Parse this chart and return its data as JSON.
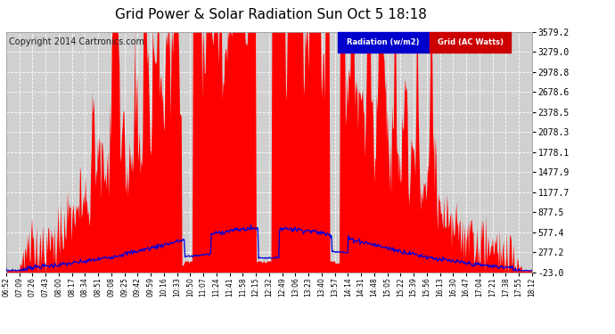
{
  "title": "Grid Power & Solar Radiation Sun Oct 5 18:18",
  "copyright": "Copyright 2014 Cartronics.com",
  "legend_radiation": "Radiation (w/m2)",
  "legend_grid": "Grid (AC Watts)",
  "ylabel_ticks": [
    3579.2,
    3279.0,
    2978.8,
    2678.6,
    2378.5,
    2078.3,
    1778.1,
    1477.9,
    1177.7,
    877.5,
    577.4,
    277.2,
    -23.0
  ],
  "ymin": -23.0,
  "ymax": 3579.2,
  "bg_color": "#ffffff",
  "plot_bg_color": "#d0d0d0",
  "grid_color": "#ffffff",
  "radiation_color": "#0000dd",
  "grid_power_color": "#ff0000",
  "title_color": "#000000",
  "title_fontsize": 11,
  "copyright_fontsize": 7,
  "x_tick_labels": [
    "06:52",
    "07:09",
    "07:26",
    "07:43",
    "08:00",
    "08:17",
    "08:34",
    "08:51",
    "09:08",
    "09:25",
    "09:42",
    "09:59",
    "10:16",
    "10:33",
    "10:50",
    "11:07",
    "11:24",
    "11:41",
    "11:58",
    "12:15",
    "12:32",
    "12:49",
    "13:06",
    "13:23",
    "13:40",
    "13:57",
    "14:14",
    "14:31",
    "14:48",
    "15:05",
    "15:22",
    "15:39",
    "15:56",
    "16:13",
    "16:30",
    "16:47",
    "17:04",
    "17:21",
    "17:38",
    "17:55",
    "18:12"
  ]
}
